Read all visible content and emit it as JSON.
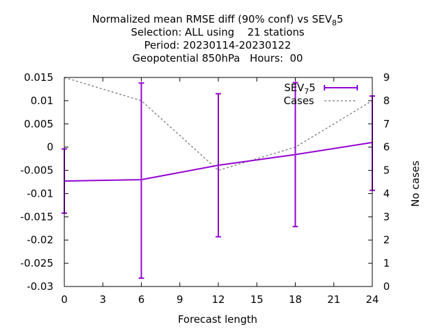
{
  "chart_data": {
    "type": "line",
    "title_lines": [
      {
        "prefix": "Normalized mean RMSE diff (90% conf) vs SEV",
        "sub": "8",
        "suffix": "5"
      },
      {
        "text": "Selection: ALL using    21 stations"
      },
      {
        "text": "Period: 20230114-20230122"
      },
      {
        "text": "Geopotential 850hPa   Hours:  00"
      }
    ],
    "xlabel": "Forecast length",
    "y2label": "No cases",
    "xlim": [
      0,
      24
    ],
    "ylim": [
      -0.03,
      0.015
    ],
    "y2lim": [
      0,
      9
    ],
    "x_ticks": [
      0,
      3,
      6,
      9,
      12,
      15,
      18,
      21,
      24
    ],
    "y_ticks": [
      0.015,
      0.01,
      0.005,
      0,
      -0.005,
      -0.01,
      -0.015,
      -0.02,
      -0.025,
      -0.03
    ],
    "y_tick_labels": [
      "0.015",
      "0.01",
      "0.005",
      "0",
      "-0.005",
      "-0.01",
      "-0.015",
      "-0.02",
      "-0.025",
      "-0.03"
    ],
    "y2_ticks": [
      0,
      1,
      2,
      3,
      4,
      5,
      6,
      7,
      8,
      9
    ],
    "grid": false,
    "legend_position": "top-right",
    "series": [
      {
        "name_prefix": "SEV",
        "name_sub": "7",
        "name_suffix": "5",
        "color": "#9400d3",
        "style": "errorbars",
        "x": [
          0,
          6,
          12,
          18,
          24
        ],
        "y": [
          -0.0073,
          -0.007,
          -0.0039,
          -0.0016,
          0.001
        ],
        "ylow": [
          -0.0142,
          -0.0282,
          -0.0193,
          -0.0171,
          -0.0093
        ],
        "yhigh": [
          -0.0004,
          0.0138,
          0.0115,
          0.0139,
          0.011
        ]
      },
      {
        "name": "Cases",
        "color": "#888888",
        "style": "dashed",
        "axis": "y2",
        "x": [
          0,
          6,
          12,
          18,
          24
        ],
        "y": [
          9,
          8,
          5,
          6,
          8
        ]
      }
    ]
  }
}
